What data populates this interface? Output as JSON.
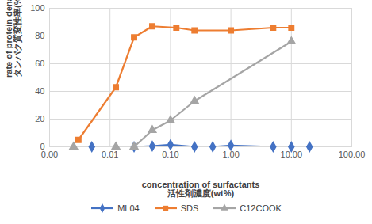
{
  "chart_data": {
    "type": "line",
    "x_label": "concentration of surfactants\n活性剤濃度(wt%)",
    "y_label": "rate of protein denaturation\nタンパク質変性率(%)",
    "log": "x",
    "grid": true,
    "legend": "bottom",
    "xlim": [
      0.001,
      100
    ],
    "xticks": [
      {
        "value": 0.001,
        "label": "0.00"
      },
      {
        "value": 0.01,
        "label": "0.01"
      },
      {
        "value": 0.1,
        "label": "0.10"
      },
      {
        "value": 1,
        "label": "1.00"
      },
      {
        "value": 10,
        "label": "10.00"
      },
      {
        "value": 100,
        "label": "100.00"
      }
    ],
    "ylim": [
      0,
      100
    ],
    "yticks": [
      0,
      20,
      40,
      60,
      80,
      100
    ],
    "series": [
      {
        "name": "ML04",
        "color": "#4472c4",
        "marker": "diamond",
        "x": [
          0.005,
          0.025,
          0.05,
          0.1,
          0.25,
          0.5,
          1,
          5,
          10,
          20
        ],
        "values": [
          0,
          0,
          0.5,
          1.5,
          0,
          0,
          1,
          0,
          0,
          0
        ]
      },
      {
        "name": "SDS",
        "color": "#ed7d31",
        "marker": "square",
        "x": [
          0.003,
          0.0125,
          0.025,
          0.05,
          0.125,
          0.25,
          1,
          5,
          10
        ],
        "values": [
          5,
          43,
          79,
          87,
          86,
          84,
          84,
          86,
          86
        ]
      },
      {
        "name": "C12COOK",
        "color": "#a5a5a5",
        "marker": "triangle",
        "x": [
          0.0025,
          0.0125,
          0.025,
          0.05,
          0.1,
          0.25,
          10
        ],
        "values": [
          0,
          0,
          0,
          12,
          19,
          33,
          76
        ]
      }
    ]
  }
}
